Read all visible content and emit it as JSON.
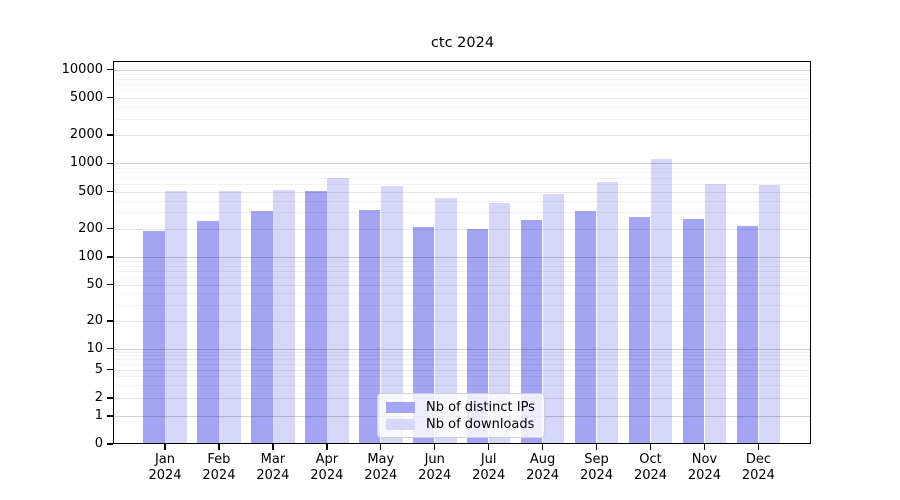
{
  "chart_data": {
    "type": "bar",
    "title": "ctc 2024",
    "categories": [
      "Jan 2024",
      "Feb 2024",
      "Mar 2024",
      "Apr 2024",
      "May 2024",
      "Jun 2024",
      "Jul 2024",
      "Aug 2024",
      "Sep 2024",
      "Oct 2024",
      "Nov 2024",
      "Dec 2024"
    ],
    "series": [
      {
        "name": "Nb of distinct IPs",
        "color": "#a4a4f4",
        "values": [
          190,
          245,
          310,
          505,
          320,
          210,
          200,
          250,
          310,
          270,
          253,
          215
        ]
      },
      {
        "name": "Nb of downloads",
        "color": "#d6d6f9",
        "values": [
          505,
          505,
          515,
          705,
          570,
          425,
          380,
          465,
          630,
          1110,
          605,
          590
        ]
      }
    ],
    "xlabel": "",
    "ylabel": "",
    "y_axis": {
      "scale": "symlog",
      "ticks": [
        0,
        1,
        2,
        5,
        10,
        20,
        50,
        100,
        200,
        500,
        1000,
        2000,
        5000,
        10000
      ],
      "ylim": [
        0,
        10000
      ],
      "grid": "major and minor horizontal gridlines"
    },
    "legend": {
      "position": "lower center",
      "entries": [
        "Nb of distinct IPs",
        "Nb of downloads"
      ]
    }
  }
}
